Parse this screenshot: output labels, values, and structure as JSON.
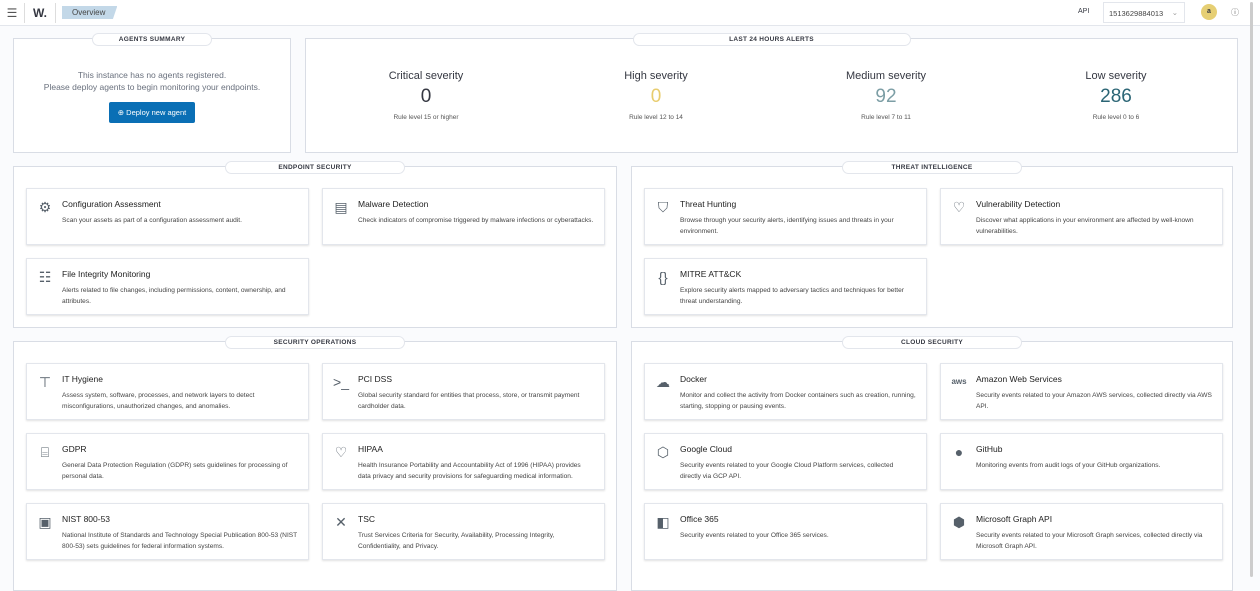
{
  "header": {
    "logo": "W.",
    "breadcrumb": "Overview",
    "api_label": "API",
    "api_value": "1513629884013",
    "avatar": "a"
  },
  "agents": {
    "title": "AGENTS SUMMARY",
    "line1": "This instance has no agents registered.",
    "line2": "Please deploy agents to begin monitoring your endpoints.",
    "button": "Deploy new agent"
  },
  "alerts": {
    "title": "LAST 24 HOURS ALERTS",
    "items": [
      {
        "title": "Critical severity",
        "value": "0",
        "rule": "Rule level 15 or higher",
        "color": "#343741"
      },
      {
        "title": "High severity",
        "value": "0",
        "rule": "Rule level 12 to 14",
        "color": "#e8cc6e"
      },
      {
        "title": "Medium severity",
        "value": "92",
        "rule": "Rule level 7 to 11",
        "color": "#7c9ea5"
      },
      {
        "title": "Low severity",
        "value": "286",
        "rule": "Rule level 0 to 6",
        "color": "#2b6575"
      }
    ]
  },
  "sections": [
    {
      "title": "ENDPOINT SECURITY",
      "cards": [
        {
          "title": "Configuration Assessment",
          "desc": "Scan your assets as part of a configuration assessment audit.",
          "icon": "gear-icon"
        },
        {
          "title": "Malware Detection",
          "desc": "Check indicators of compromise triggered by malware infections or cyberattacks.",
          "icon": "document-gear-icon"
        },
        {
          "title": "File Integrity Monitoring",
          "desc": "Alerts related to file changes, including permissions, content, ownership, and attributes.",
          "icon": "table-icon"
        }
      ]
    },
    {
      "title": "THREAT INTELLIGENCE",
      "cards": [
        {
          "title": "Threat Hunting",
          "desc": "Browse through your security alerts, identifying issues and threats in your environment.",
          "icon": "shield-icon"
        },
        {
          "title": "Vulnerability Detection",
          "desc": "Discover what applications in your environment are affected by well-known vulnerabilities.",
          "icon": "heart-icon"
        },
        {
          "title": "MITRE ATT&CK",
          "desc": "Explore security alerts mapped to adversary tactics and techniques for better threat understanding.",
          "icon": "brackets-icon"
        }
      ]
    },
    {
      "title": "SECURITY OPERATIONS",
      "cards": [
        {
          "title": "IT Hygiene",
          "desc": "Assess system, software, processes, and network layers to detect misconfigurations, unauthorized changes, and anomalies.",
          "icon": "network-icon"
        },
        {
          "title": "PCI DSS",
          "desc": "Global security standard for entities that process, store, or transmit payment cardholder data.",
          "icon": "terminal-icon"
        },
        {
          "title": "GDPR",
          "desc": "General Data Protection Regulation (GDPR) sets guidelines for processing of personal data.",
          "icon": "building-icon"
        },
        {
          "title": "HIPAA",
          "desc": "Health Insurance Portability and Accountability Act of 1996 (HIPAA) provides data privacy and security provisions for safeguarding medical information.",
          "icon": "heart-pulse-icon"
        },
        {
          "title": "NIST 800-53",
          "desc": "National Institute of Standards and Technology Special Publication 800-53 (NIST 800-53) sets guidelines for federal information systems.",
          "icon": "clipboard-icon"
        },
        {
          "title": "TSC",
          "desc": "Trust Services Criteria for Security, Availability, Processing Integrity, Confidentiality, and Privacy.",
          "icon": "nodes-icon"
        }
      ]
    },
    {
      "title": "CLOUD SECURITY",
      "cards": [
        {
          "title": "Docker",
          "desc": "Monitor and collect the activity from Docker containers such as creation, running, starting, stopping or pausing events.",
          "icon": "docker-icon"
        },
        {
          "title": "Amazon Web Services",
          "desc": "Security events related to your Amazon AWS services, collected directly via AWS API.",
          "icon": "aws-icon"
        },
        {
          "title": "Google Cloud",
          "desc": "Security events related to your Google Cloud Platform services, collected directly via GCP API.",
          "icon": "google-cloud-icon"
        },
        {
          "title": "GitHub",
          "desc": "Monitoring events from audit logs of your GitHub organizations.",
          "icon": "github-icon"
        },
        {
          "title": "Office 365",
          "desc": "Security events related to your Office 365 services.",
          "icon": "office-icon"
        },
        {
          "title": "Microsoft Graph API",
          "desc": "Security events related to your Microsoft Graph services, collected directly via Microsoft Graph API.",
          "icon": "graph-icon"
        }
      ]
    }
  ]
}
